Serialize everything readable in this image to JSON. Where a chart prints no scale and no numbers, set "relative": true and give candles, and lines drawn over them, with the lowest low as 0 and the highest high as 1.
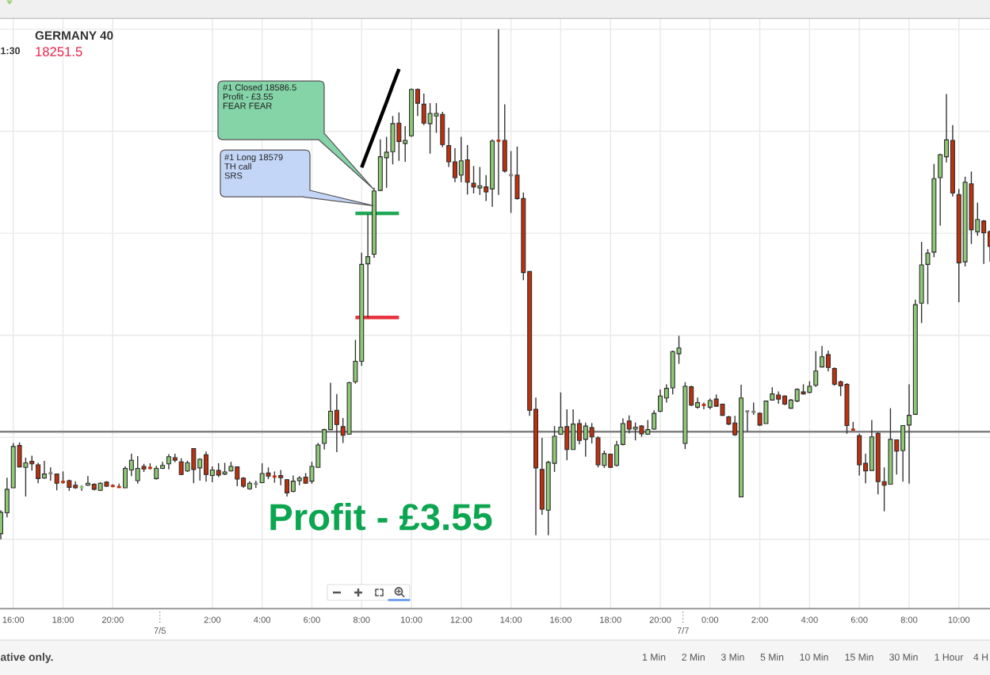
{
  "chart_data": {
    "type": "candlestick",
    "title": "GERMANY 40",
    "subtitle": "18251.5",
    "relative": true,
    "grid": true,
    "tick_labels": "x",
    "categories": [
      null,
      null,
      "16:00",
      null,
      null,
      null,
      null,
      null,
      null,
      null,
      "18:00",
      null,
      null,
      null,
      null,
      null,
      null,
      null,
      "20:00",
      null,
      null,
      null,
      null,
      null,
      null,
      null,
      null,
      null,
      null,
      null,
      null,
      null,
      null,
      null,
      "2:00",
      null,
      null,
      null,
      null,
      null,
      null,
      null,
      "4:00",
      null,
      null,
      null,
      null,
      null,
      null,
      null,
      "6:00",
      null,
      null,
      null,
      null,
      null,
      null,
      null,
      "8:00",
      null,
      null,
      null,
      null,
      null,
      null,
      null,
      "10:00",
      null,
      null,
      null,
      null,
      null,
      null,
      null,
      "12:00",
      null,
      null,
      null,
      null,
      null,
      null,
      null,
      "14:00",
      null,
      null,
      null,
      null,
      null,
      null,
      null,
      "16:00",
      null,
      null,
      null,
      null,
      null,
      null,
      null,
      "18:00",
      null,
      null,
      null,
      null,
      null,
      null,
      null,
      "20:00",
      null,
      null,
      null,
      null,
      null,
      null,
      null,
      "0:00",
      null,
      null,
      null,
      null,
      null,
      null,
      null,
      "2:00",
      null,
      null,
      null,
      null,
      null,
      null,
      null,
      "4:00",
      null,
      null,
      null,
      null,
      null,
      null,
      null,
      "6:00",
      null,
      null,
      null,
      null,
      null,
      null,
      null,
      "8:00",
      null,
      null,
      null,
      null,
      null,
      null,
      null,
      "10:00",
      null,
      null,
      null,
      null,
      null
    ],
    "ohlc": [
      [
        0.011,
        0.057,
        0.0,
        0.053
      ],
      [
        0.052,
        0.121,
        0.043,
        0.098
      ],
      [
        0.101,
        0.189,
        0.101,
        0.182
      ],
      [
        0.184,
        0.19,
        0.141,
        0.142
      ],
      [
        0.141,
        0.16,
        0.084,
        0.15
      ],
      [
        0.153,
        0.164,
        0.135,
        0.148
      ],
      [
        0.146,
        0.15,
        0.11,
        0.119
      ],
      [
        0.12,
        0.154,
        0.119,
        0.128
      ],
      [
        0.129,
        0.141,
        0.115,
        0.13
      ],
      [
        0.128,
        0.129,
        0.096,
        0.11
      ],
      [
        0.114,
        0.133,
        0.109,
        0.111
      ],
      [
        0.115,
        0.117,
        0.095,
        0.102
      ],
      [
        0.106,
        0.114,
        0.099,
        0.101
      ],
      [
        0.1,
        0.106,
        0.095,
        0.104
      ],
      [
        0.106,
        0.124,
        0.105,
        0.11
      ],
      [
        0.108,
        0.11,
        0.096,
        0.098
      ],
      [
        0.096,
        0.112,
        0.095,
        0.11
      ],
      [
        0.112,
        0.114,
        0.103,
        0.104
      ],
      [
        0.106,
        0.108,
        0.102,
        0.103
      ],
      [
        0.104,
        0.109,
        0.101,
        0.101
      ],
      [
        0.101,
        0.143,
        0.101,
        0.139
      ],
      [
        0.136,
        0.168,
        0.124,
        0.155
      ],
      [
        0.115,
        0.163,
        0.109,
        0.139
      ],
      [
        0.143,
        0.148,
        0.132,
        0.138
      ],
      [
        0.142,
        0.149,
        0.137,
        0.138
      ],
      [
        0.119,
        0.144,
        0.117,
        0.139
      ],
      [
        0.139,
        0.152,
        0.138,
        0.145
      ],
      [
        0.148,
        0.167,
        0.137,
        0.162
      ],
      [
        0.16,
        0.168,
        0.151,
        0.155
      ],
      [
        0.152,
        0.159,
        0.126,
        0.127
      ],
      [
        0.134,
        0.154,
        0.132,
        0.15
      ],
      [
        0.178,
        0.178,
        0.11,
        0.137
      ],
      [
        0.14,
        0.159,
        0.115,
        0.157
      ],
      [
        0.166,
        0.172,
        0.113,
        0.127
      ],
      [
        0.125,
        0.143,
        0.112,
        0.136
      ],
      [
        0.135,
        0.149,
        0.122,
        0.126
      ],
      [
        0.128,
        0.15,
        0.126,
        0.132
      ],
      [
        0.134,
        0.152,
        0.133,
        0.143
      ],
      [
        0.142,
        0.143,
        0.104,
        0.118
      ],
      [
        0.12,
        0.122,
        0.101,
        0.104
      ],
      [
        0.099,
        0.114,
        0.097,
        0.11
      ],
      [
        0.108,
        0.115,
        0.101,
        0.11
      ],
      [
        0.111,
        0.149,
        0.11,
        0.129
      ],
      [
        0.13,
        0.141,
        0.118,
        0.124
      ],
      [
        0.124,
        0.133,
        0.111,
        0.122
      ],
      [
        0.125,
        0.136,
        0.106,
        0.121
      ],
      [
        0.117,
        0.118,
        0.084,
        0.091
      ],
      [
        0.094,
        0.125,
        0.092,
        0.114
      ],
      [
        0.115,
        0.124,
        0.106,
        0.12
      ],
      [
        0.122,
        0.13,
        0.109,
        0.11
      ],
      [
        0.114,
        0.152,
        0.109,
        0.143
      ],
      [
        0.141,
        0.189,
        0.141,
        0.185
      ],
      [
        0.188,
        0.217,
        0.176,
        0.215
      ],
      [
        0.215,
        0.307,
        0.215,
        0.251
      ],
      [
        0.253,
        0.285,
        0.171,
        0.225
      ],
      [
        0.221,
        0.238,
        0.189,
        0.204
      ],
      [
        0.206,
        0.309,
        0.206,
        0.307
      ],
      [
        0.309,
        0.391,
        0.305,
        0.349
      ],
      [
        0.349,
        0.562,
        0.34,
        0.539
      ],
      [
        0.54,
        0.637,
        0.434,
        0.554
      ],
      [
        0.559,
        0.689,
        0.552,
        0.683
      ],
      [
        0.684,
        0.784,
        0.683,
        0.75
      ],
      [
        0.748,
        0.789,
        0.689,
        0.759
      ],
      [
        0.76,
        0.83,
        0.735,
        0.815
      ],
      [
        0.816,
        0.837,
        0.742,
        0.78
      ],
      [
        0.776,
        0.81,
        0.74,
        0.782
      ],
      [
        0.791,
        0.884,
        0.789,
        0.882
      ],
      [
        0.882,
        0.884,
        0.83,
        0.855
      ],
      [
        0.853,
        0.874,
        0.812,
        0.816
      ],
      [
        0.815,
        0.855,
        0.756,
        0.835
      ],
      [
        0.83,
        0.855,
        0.797,
        0.835
      ],
      [
        0.833,
        0.838,
        0.769,
        0.774
      ],
      [
        0.772,
        0.807,
        0.73,
        0.74
      ],
      [
        0.74,
        0.767,
        0.7,
        0.709
      ],
      [
        0.714,
        0.789,
        0.7,
        0.742
      ],
      [
        0.744,
        0.773,
        0.676,
        0.7
      ],
      [
        0.698,
        0.732,
        0.678,
        0.691
      ],
      [
        0.689,
        0.73,
        0.675,
        0.693
      ],
      [
        0.691,
        0.714,
        0.663,
        0.681
      ],
      [
        0.687,
        0.784,
        0.652,
        0.781
      ],
      [
        0.783,
        1.0,
        0.675,
        0.78
      ],
      [
        0.782,
        0.853,
        0.719,
        0.722
      ],
      [
        0.714,
        0.761,
        0.64,
        0.714
      ],
      [
        0.714,
        0.77,
        0.666,
        0.668
      ],
      [
        0.668,
        0.68,
        0.508,
        0.523
      ],
      [
        0.525,
        0.526,
        0.242,
        0.253
      ],
      [
        0.255,
        0.278,
        0.008,
        0.14
      ],
      [
        0.137,
        0.199,
        0.048,
        0.059
      ],
      [
        0.057,
        0.154,
        0.008,
        0.151
      ],
      [
        0.149,
        0.222,
        0.132,
        0.202
      ],
      [
        0.206,
        0.288,
        0.205,
        0.22
      ],
      [
        0.221,
        0.255,
        0.155,
        0.176
      ],
      [
        0.176,
        0.255,
        0.176,
        0.226
      ],
      [
        0.227,
        0.235,
        0.186,
        0.194
      ],
      [
        0.196,
        0.229,
        0.162,
        0.222
      ],
      [
        0.219,
        0.228,
        0.188,
        0.201
      ],
      [
        0.199,
        0.202,
        0.141,
        0.146
      ],
      [
        0.145,
        0.174,
        0.14,
        0.168
      ],
      [
        0.167,
        0.168,
        0.14,
        0.141
      ],
      [
        0.145,
        0.193,
        0.143,
        0.185
      ],
      [
        0.186,
        0.237,
        0.184,
        0.227
      ],
      [
        0.232,
        0.243,
        0.208,
        0.216
      ],
      [
        0.216,
        0.229,
        0.194,
        0.22
      ],
      [
        0.222,
        0.224,
        0.201,
        0.207
      ],
      [
        0.206,
        0.234,
        0.205,
        0.215
      ],
      [
        0.216,
        0.253,
        0.215,
        0.247
      ],
      [
        0.251,
        0.294,
        0.249,
        0.281
      ],
      [
        0.277,
        0.304,
        0.268,
        0.296
      ],
      [
        0.297,
        0.37,
        0.284,
        0.368
      ],
      [
        0.364,
        0.399,
        0.344,
        0.375
      ],
      [
        0.188,
        0.308,
        0.177,
        0.3
      ],
      [
        0.299,
        0.301,
        0.261,
        0.263
      ],
      [
        0.259,
        0.278,
        0.256,
        0.268
      ],
      [
        0.265,
        0.268,
        0.255,
        0.262
      ],
      [
        0.259,
        0.276,
        0.255,
        0.272
      ],
      [
        0.275,
        0.284,
        0.26,
        0.261
      ],
      [
        0.265,
        0.266,
        0.242,
        0.243
      ],
      [
        0.24,
        0.242,
        0.224,
        0.226
      ],
      [
        0.228,
        0.242,
        0.203,
        0.205
      ],
      [
        0.083,
        0.303,
        0.083,
        0.277
      ],
      [
        0.251,
        0.251,
        0.211,
        0.251
      ],
      [
        0.25,
        0.268,
        0.244,
        0.25
      ],
      [
        0.247,
        0.249,
        0.222,
        0.224
      ],
      [
        0.227,
        0.272,
        0.227,
        0.271
      ],
      [
        0.273,
        0.298,
        0.272,
        0.285
      ],
      [
        0.283,
        0.29,
        0.266,
        0.275
      ],
      [
        0.281,
        0.282,
        0.263,
        0.265
      ],
      [
        0.257,
        0.275,
        0.256,
        0.273
      ],
      [
        0.271,
        0.296,
        0.269,
        0.294
      ],
      [
        0.289,
        0.304,
        0.284,
        0.285
      ],
      [
        0.288,
        0.31,
        0.286,
        0.3
      ],
      [
        0.302,
        0.369,
        0.299,
        0.33
      ],
      [
        0.338,
        0.379,
        0.337,
        0.358
      ],
      [
        0.362,
        0.37,
        0.329,
        0.337
      ],
      [
        0.335,
        0.337,
        0.301,
        0.304
      ],
      [
        0.309,
        0.311,
        0.281,
        0.301
      ],
      [
        0.304,
        0.306,
        0.207,
        0.223
      ],
      [
        0.216,
        0.23,
        0.214,
        0.214
      ],
      [
        0.203,
        0.207,
        0.125,
        0.146
      ],
      [
        0.149,
        0.168,
        0.11,
        0.134
      ],
      [
        0.135,
        0.234,
        0.135,
        0.201
      ],
      [
        0.208,
        0.21,
        0.088,
        0.113
      ],
      [
        0.113,
        0.141,
        0.055,
        0.106
      ],
      [
        0.108,
        0.257,
        0.108,
        0.196
      ],
      [
        0.195,
        0.196,
        0.127,
        0.173
      ],
      [
        0.174,
        0.224,
        0.113,
        0.223
      ],
      [
        0.224,
        0.304,
        0.109,
        0.243
      ],
      [
        0.245,
        0.47,
        0.245,
        0.46
      ],
      [
        0.463,
        0.583,
        0.424,
        0.538
      ],
      [
        0.539,
        0.569,
        0.461,
        0.561
      ],
      [
        0.563,
        0.736,
        0.553,
        0.707
      ],
      [
        0.709,
        0.756,
        0.615,
        0.754
      ],
      [
        0.75,
        0.873,
        0.739,
        0.783
      ],
      [
        0.782,
        0.812,
        0.672,
        0.679
      ],
      [
        0.676,
        0.687,
        0.465,
        0.542
      ],
      [
        0.544,
        0.711,
        0.535,
        0.7
      ],
      [
        0.697,
        0.721,
        0.579,
        0.607
      ],
      [
        0.603,
        0.66,
        0.595,
        0.627
      ],
      [
        0.624,
        0.626,
        0.54,
        0.601
      ],
      [
        0.603,
        0.606,
        0.544,
        0.574
      ]
    ],
    "colors": [
      "#8fc977",
      "#8fc977",
      "#8fc977",
      "#c0300e",
      "#8fc977",
      "#c0300e",
      "#c0300e",
      "#8fc977",
      "#808080",
      "#c0300e",
      "#c0300e",
      "#c0300e",
      "#c0300e",
      "#8fc977",
      "#8fc977",
      "#c0300e",
      "#8fc977",
      "#c0300e",
      "#c0300e",
      "#c0300e",
      "#8fc977",
      "#8fc977",
      "#8fc977",
      "#c0300e",
      "#c0300e",
      "#8fc977",
      "#8fc977",
      "#8fc977",
      "#c0300e",
      "#c0300e",
      "#8fc977",
      "#c0300e",
      "#8fc977",
      "#c0300e",
      "#8fc977",
      "#c0300e",
      "#8fc977",
      "#8fc977",
      "#c0300e",
      "#c0300e",
      "#8fc977",
      "#808080",
      "#8fc977",
      "#c0300e",
      "#c0300e",
      "#c0300e",
      "#c0300e",
      "#8fc977",
      "#8fc977",
      "#c0300e",
      "#8fc977",
      "#8fc977",
      "#8fc977",
      "#8fc977",
      "#c0300e",
      "#c0300e",
      "#8fc977",
      "#8fc977",
      "#8fc977",
      "#8fc977",
      "#8fc977",
      "#8fc977",
      "#8fc977",
      "#8fc977",
      "#c0300e",
      "#8fc977",
      "#8fc977",
      "#c0300e",
      "#c0300e",
      "#8fc977",
      "#8fc977",
      "#c0300e",
      "#c0300e",
      "#c0300e",
      "#8fc977",
      "#c0300e",
      "#c0300e",
      "#8fc977",
      "#c0300e",
      "#8fc977",
      "#c0300e",
      "#c0300e",
      "#808080",
      "#c0300e",
      "#c0300e",
      "#c0300e",
      "#c0300e",
      "#c0300e",
      "#8fc977",
      "#8fc977",
      "#8fc977",
      "#c0300e",
      "#8fc977",
      "#c0300e",
      "#8fc977",
      "#c0300e",
      "#c0300e",
      "#8fc977",
      "#c0300e",
      "#8fc977",
      "#8fc977",
      "#c0300e",
      "#8fc977",
      "#c0300e",
      "#8fc977",
      "#8fc977",
      "#8fc977",
      "#8fc977",
      "#8fc977",
      "#8fc977",
      "#8fc977",
      "#c0300e",
      "#8fc977",
      "#c0300e",
      "#8fc977",
      "#c0300e",
      "#c0300e",
      "#c0300e",
      "#c0300e",
      "#8fc977",
      "#808080",
      "#808080",
      "#c0300e",
      "#8fc977",
      "#8fc977",
      "#c0300e",
      "#c0300e",
      "#8fc977",
      "#8fc977",
      "#c0300e",
      "#8fc977",
      "#8fc977",
      "#8fc977",
      "#c0300e",
      "#c0300e",
      "#c0300e",
      "#c0300e",
      "#c0300e",
      "#c0300e",
      "#c0300e",
      "#8fc977",
      "#c0300e",
      "#c0300e",
      "#8fc977",
      "#c0300e",
      "#8fc977",
      "#8fc977",
      "#8fc977",
      "#8fc977",
      "#8fc977",
      "#8fc977",
      "#8fc977",
      "#8fc977",
      "#c0300e",
      "#c0300e",
      "#8fc977",
      "#c0300e",
      "#8fc977",
      "#c0300e",
      "#c0300e"
    ],
    "series": [
      {
        "type": "line",
        "color": "#1fa855",
        "values": [
          null,
          null,
          null,
          null,
          null,
          null,
          null,
          null,
          null,
          null,
          null,
          null,
          null,
          null,
          null,
          null,
          null,
          null,
          null,
          null,
          null,
          null,
          null,
          null,
          null,
          null,
          null,
          null,
          null,
          null,
          null,
          null,
          null,
          null,
          null,
          null,
          null,
          null,
          null,
          null,
          null,
          null,
          null,
          null,
          null,
          null,
          null,
          null,
          null,
          null,
          null,
          null,
          null,
          null,
          null,
          null,
          null,
          0.639,
          0.639,
          0.639,
          0.639,
          0.639,
          0.639,
          0.639,
          0.639,
          null,
          null,
          null,
          null,
          null,
          null,
          null,
          null,
          null,
          null,
          null,
          null,
          null,
          null,
          null,
          null,
          null,
          null,
          null,
          null,
          null,
          null,
          null,
          null,
          null,
          null,
          null,
          null,
          null,
          null,
          null,
          null,
          null,
          null,
          null,
          null,
          null,
          null,
          null,
          null,
          null,
          null,
          null,
          null,
          null,
          null,
          null,
          null,
          null,
          null,
          null,
          null,
          null,
          null,
          null,
          null,
          null,
          null,
          null,
          null,
          null,
          null,
          null,
          null,
          null,
          null,
          null,
          null,
          null,
          null,
          null,
          null,
          null,
          null,
          null,
          null,
          null,
          null,
          null,
          null,
          null,
          null,
          null,
          null,
          null,
          null,
          null,
          null,
          null,
          null,
          null,
          null,
          null,
          null,
          null
        ]
      },
      {
        "type": "line",
        "color": "#e8343c",
        "values": [
          null,
          null,
          null,
          null,
          null,
          null,
          null,
          null,
          null,
          null,
          null,
          null,
          null,
          null,
          null,
          null,
          null,
          null,
          null,
          null,
          null,
          null,
          null,
          null,
          null,
          null,
          null,
          null,
          null,
          null,
          null,
          null,
          null,
          null,
          null,
          null,
          null,
          null,
          null,
          null,
          null,
          null,
          null,
          null,
          null,
          null,
          null,
          null,
          null,
          null,
          null,
          null,
          null,
          null,
          null,
          null,
          null,
          0.435,
          0.435,
          0.435,
          0.435,
          0.435,
          0.435,
          0.435,
          0.435,
          null,
          null,
          null,
          null,
          null,
          null,
          null,
          null,
          null,
          null,
          null,
          null,
          null,
          null,
          null,
          null,
          null,
          null,
          null,
          null,
          null,
          null,
          null,
          null,
          null,
          null,
          null,
          null,
          null,
          null,
          null,
          null,
          null,
          null,
          null,
          null,
          null,
          null,
          null,
          null,
          null,
          null,
          null,
          null,
          null,
          null,
          null,
          null,
          null,
          null,
          null,
          null,
          null,
          null,
          null,
          null,
          null,
          null,
          null,
          null,
          null,
          null,
          null,
          null,
          null,
          null,
          null,
          null,
          null,
          null,
          null,
          null,
          null,
          null,
          null,
          null,
          null,
          null,
          null,
          null,
          null,
          null,
          null,
          null,
          null,
          null,
          null,
          null,
          null,
          null,
          null,
          null,
          null,
          null,
          null
        ]
      },
      {
        "type": "line",
        "color": "#000000",
        "values": [
          null,
          null,
          null,
          null,
          null,
          null,
          null,
          null,
          null,
          null,
          null,
          null,
          null,
          null,
          null,
          null,
          null,
          null,
          null,
          null,
          null,
          null,
          null,
          null,
          null,
          null,
          null,
          null,
          null,
          null,
          null,
          null,
          null,
          null,
          null,
          null,
          null,
          null,
          null,
          null,
          null,
          null,
          null,
          null,
          null,
          null,
          null,
          null,
          null,
          null,
          null,
          null,
          null,
          null,
          null,
          null,
          null,
          null,
          0.729,
          0.761,
          0.793,
          0.825,
          0.857,
          0.89,
          0.922,
          null,
          null,
          null,
          null,
          null,
          null,
          null,
          null,
          null,
          null,
          null,
          null,
          null,
          null,
          null,
          null,
          null,
          null,
          null,
          null,
          null,
          null,
          null,
          null,
          null,
          null,
          null,
          null,
          null,
          null,
          null,
          null,
          null,
          null,
          null,
          null,
          null,
          null,
          null,
          null,
          null,
          null,
          null,
          null,
          null,
          null,
          null,
          null,
          null,
          null,
          null,
          null,
          null,
          null,
          null,
          null,
          null,
          null,
          null,
          null,
          null,
          null,
          null,
          null,
          null,
          null,
          null,
          null,
          null,
          null,
          null,
          null,
          null,
          null,
          null,
          null,
          null,
          null,
          null,
          null,
          null,
          null,
          null,
          null,
          null,
          null,
          null,
          null,
          null,
          null,
          null,
          null,
          null,
          null,
          null
        ]
      }
    ],
    "ref_lines": [
      {
        "axis": "y",
        "value": 0.211,
        "color": "#808080"
      }
    ],
    "annotations": [
      "#1 Closed 18586.5\nProfit - £3.55\nFEAR FEAR",
      "#1 Long 18579\nTH call\nSRS",
      "Profit - £3.55",
      "1:30",
      "7/5",
      "7/7",
      "ative only.",
      "1 Min",
      "2 Min",
      "3 Min",
      "5 Min",
      "10 Min",
      "15 Min",
      "30 Min",
      "1 Hour",
      "4 H"
    ]
  }
}
